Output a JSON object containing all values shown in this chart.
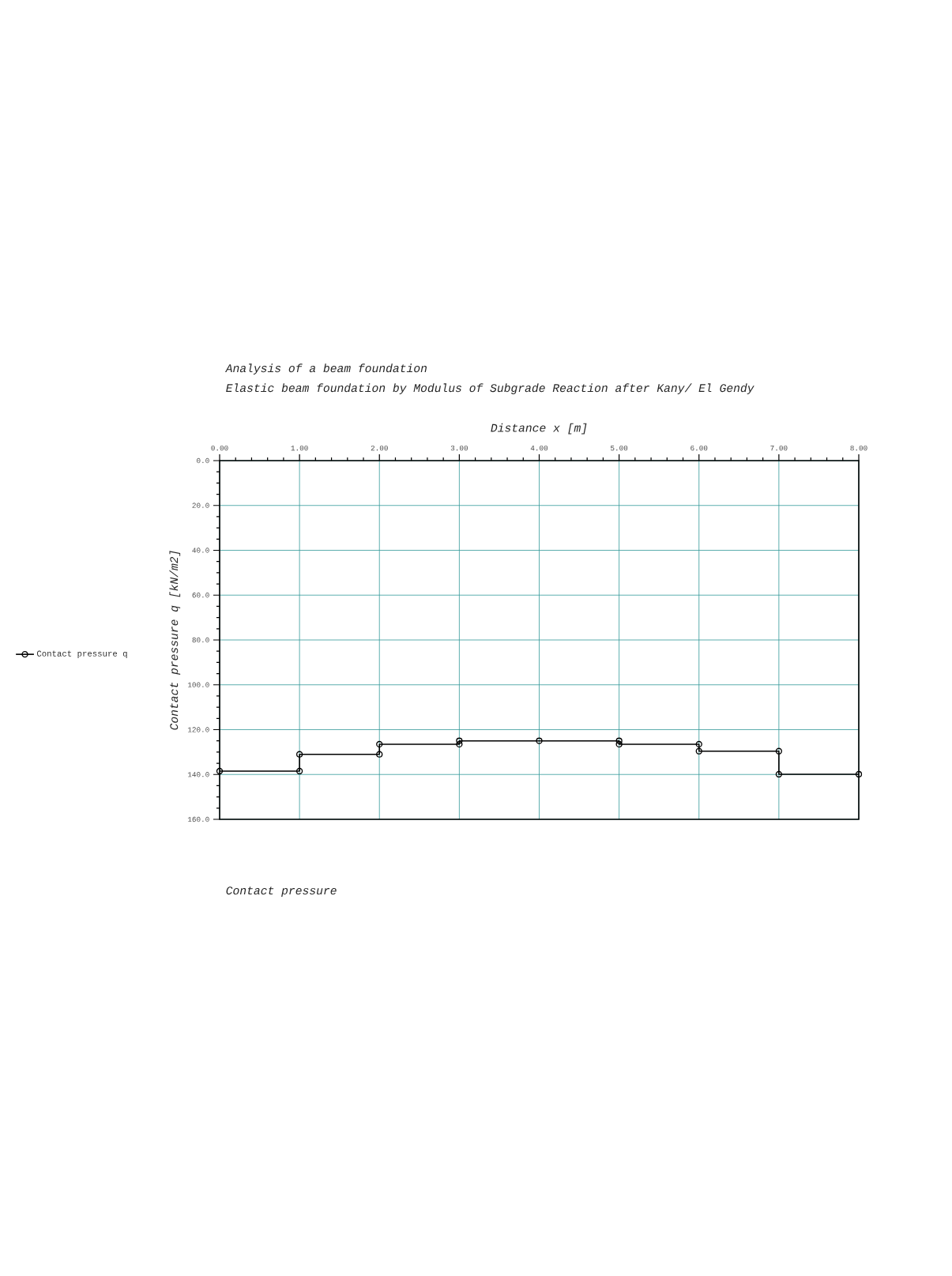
{
  "chart_data": {
    "type": "line",
    "title": "Analysis of a beam foundation",
    "subtitle": "Elastic beam foundation by Modulus of Subgrade Reaction after Kany/ El Gendy",
    "xlabel": "Distance x [m]",
    "ylabel": "Contact pressure q [kN/m2]",
    "series": [
      {
        "name": "Contact pressure q",
        "color": "#000000",
        "x": [
          0,
          1,
          1,
          2,
          2,
          3,
          3,
          4,
          5,
          5,
          6,
          6,
          7,
          7,
          8
        ],
        "values": [
          138.5,
          138.5,
          131,
          131,
          126.5,
          126.5,
          125,
          125,
          125,
          126.5,
          126.5,
          129.6,
          129.6,
          139.9,
          139.9
        ]
      }
    ],
    "xlim": [
      0,
      8
    ],
    "ylim": [
      160,
      0
    ],
    "xticks": [
      {
        "value": 0,
        "label": "0.00"
      },
      {
        "value": 1,
        "label": "1.00"
      },
      {
        "value": 2,
        "label": "2.00"
      },
      {
        "value": 3,
        "label": "3.00"
      },
      {
        "value": 4,
        "label": "4.00"
      },
      {
        "value": 5,
        "label": "5.00"
      },
      {
        "value": 6,
        "label": "6.00"
      },
      {
        "value": 7,
        "label": "7.00"
      },
      {
        "value": 8,
        "label": "8.00"
      }
    ],
    "yticks": [
      {
        "value": 0,
        "label": "0.0"
      },
      {
        "value": 20,
        "label": "20.0"
      },
      {
        "value": 40,
        "label": "40.0"
      },
      {
        "value": 60,
        "label": "60.0"
      },
      {
        "value": 80,
        "label": "80.0"
      },
      {
        "value": 100,
        "label": "100.0"
      },
      {
        "value": 120,
        "label": "120.0"
      },
      {
        "value": 140,
        "label": "140.0"
      },
      {
        "value": 160,
        "label": "160.0"
      }
    ],
    "grid": true,
    "legend": "left",
    "marker": "circle",
    "line_style": "solid",
    "annotations": [
      "Contact pressure"
    ]
  }
}
